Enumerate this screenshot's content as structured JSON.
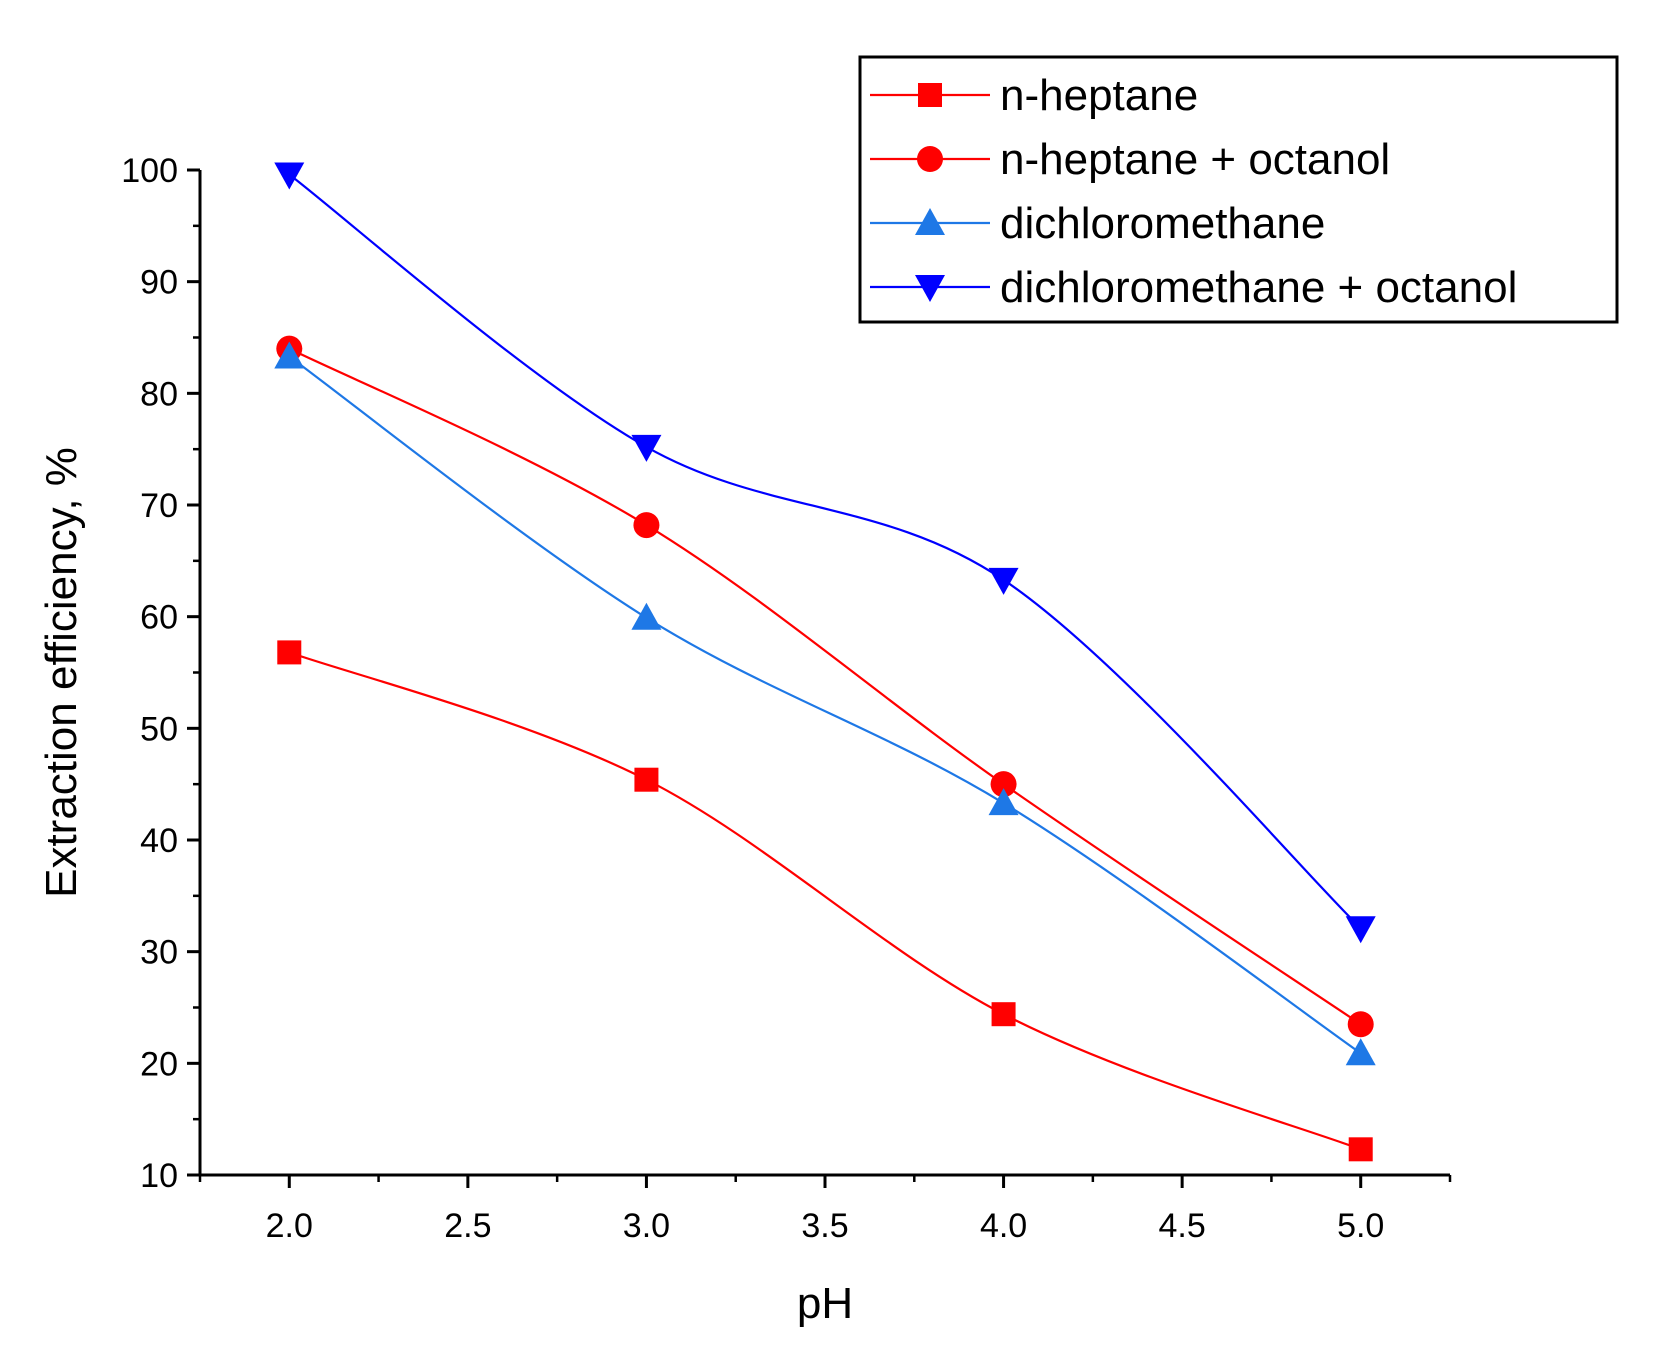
{
  "chart_data": {
    "type": "line",
    "title": "",
    "xlabel": "pH",
    "ylabel": "Extraction efficiency, %",
    "xlim": [
      1.75,
      5.25
    ],
    "ylim": [
      10,
      100
    ],
    "x": [
      2.0,
      3.0,
      4.0,
      5.0
    ],
    "x_ticks": [
      2.0,
      2.5,
      3.0,
      3.5,
      4.0,
      4.5,
      5.0
    ],
    "x_tick_labels": [
      "2.0",
      "2.5",
      "3.0",
      "3.5",
      "4.0",
      "4.5",
      "5.0"
    ],
    "y_ticks": [
      10,
      20,
      30,
      40,
      50,
      60,
      70,
      80,
      90,
      100
    ],
    "y_tick_labels": [
      "10",
      "20",
      "30",
      "40",
      "50",
      "60",
      "70",
      "80",
      "90",
      "100"
    ],
    "grid": false,
    "legend_position": "top-right",
    "series": [
      {
        "name": "n-heptane",
        "values": [
          56.8,
          45.4,
          24.4,
          12.3
        ],
        "color": "#ff0000",
        "marker": "square"
      },
      {
        "name": "n-heptane + octanol",
        "values": [
          84.0,
          68.2,
          45.0,
          23.5
        ],
        "color": "#ff0000",
        "marker": "circle"
      },
      {
        "name": "dichloromethane",
        "values": [
          83.3,
          59.9,
          43.3,
          20.9
        ],
        "color": "#1e78e6",
        "marker": "triangle-up"
      },
      {
        "name": "dichloromethane + octanol",
        "values": [
          99.6,
          75.2,
          63.3,
          32.1
        ],
        "color": "#0000ff",
        "marker": "triangle-down"
      }
    ]
  }
}
